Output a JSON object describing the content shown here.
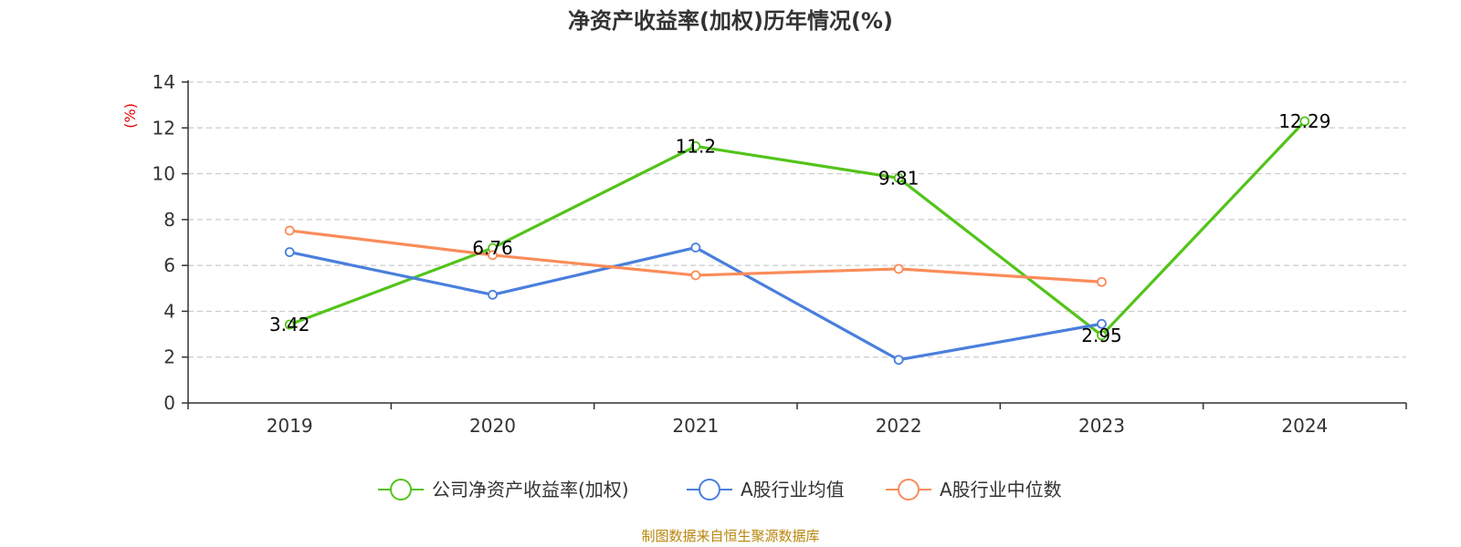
{
  "chart_data": {
    "type": "line",
    "title": "净资产收益率(加权)历年情况(%)",
    "ylabel": "(%)",
    "xlabel": "",
    "categories": [
      "2019",
      "2020",
      "2021",
      "2022",
      "2023",
      "2024"
    ],
    "ylim": [
      0,
      14
    ],
    "yticks": [
      0,
      2,
      4,
      6,
      8,
      10,
      12,
      14
    ],
    "grid": true,
    "legend_position": "bottom",
    "series": [
      {
        "name": "公司净资产收益率(加权)",
        "color": "#52c41a",
        "values": [
          3.42,
          6.76,
          11.2,
          9.81,
          2.95,
          12.29
        ],
        "labels": [
          "3.42",
          "6.76",
          "11.2",
          "9.81",
          "2.95",
          "12.29"
        ]
      },
      {
        "name": "A股行业均值",
        "color": "#4a7fdc",
        "values": [
          6.58,
          4.72,
          6.78,
          1.88,
          3.45,
          null
        ]
      },
      {
        "name": "A股行业中位数",
        "color": "#fa8c5a",
        "values": [
          7.52,
          6.45,
          5.57,
          5.85,
          5.28,
          null
        ]
      }
    ]
  },
  "source": "制图数据来自恒生聚源数据库"
}
